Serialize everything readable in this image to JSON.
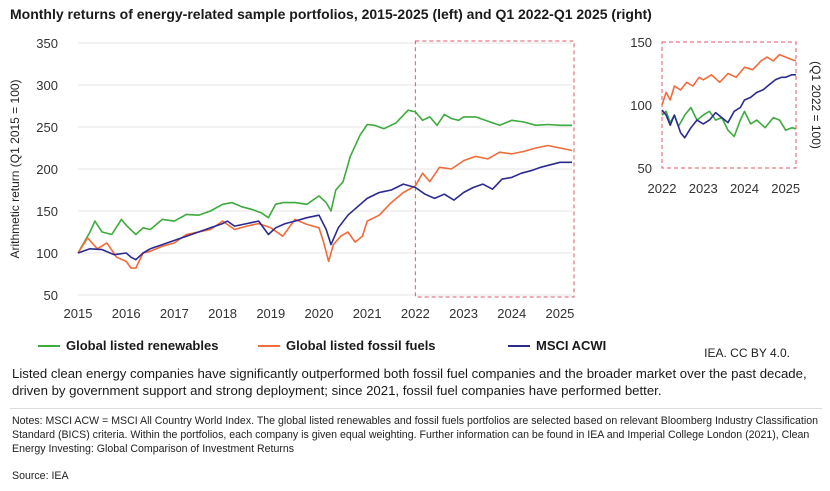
{
  "title": "Monthly returns of energy-related sample portfolios, 2015-2025 (left) and Q1 2022-Q1 2025 (right)",
  "credit": "IEA. CC BY 4.0.",
  "caption": "Listed clean energy companies have significantly outperformed both fossil fuel companies and the broader market over the past decade, driven by government support and strong deployment; since 2021, fossil fuel companies have performed better.",
  "notes": "Notes: MSCI ACW = MSCI All Country World Index. The global listed renewables and fossil fuels portfolios are selected based on relevant Bloomberg Industry Classification Standard (BICS) criteria. Within the portfolios, each company is given equal weighting. Further information can be found in IEA and Imperial College London (2021), Clean Energy Investing: Global Comparison of Investment Returns",
  "source": "Source: IEA",
  "colors": {
    "renewables": "#3dab3d",
    "fossil": "#f26b3a",
    "acwi": "#2b2a8f",
    "highlight": "#e05a6a"
  },
  "chart_data": [
    {
      "type": "line",
      "x_ticks": [
        "2015",
        "2016",
        "2017",
        "2018",
        "2019",
        "2020",
        "2021",
        "2022",
        "2023",
        "2024",
        "2025"
      ],
      "ylabel": "Arithmetic return (Q1 2015 = 100)",
      "ylim": [
        50,
        350
      ],
      "y_ticks": [
        50,
        100,
        150,
        200,
        250,
        300,
        350
      ],
      "xlim": [
        2015,
        2025.25
      ],
      "grid": true,
      "highlight_range": [
        2022,
        2025.25
      ],
      "series": [
        {
          "name": "Global listed renewables",
          "color_key": "renewables",
          "x": [
            2015.0,
            2015.25,
            2015.35,
            2015.5,
            2015.7,
            2015.9,
            2016.0,
            2016.2,
            2016.35,
            2016.5,
            2016.75,
            2017.0,
            2017.25,
            2017.5,
            2017.75,
            2018.0,
            2018.2,
            2018.4,
            2018.6,
            2018.8,
            2018.95,
            2019.1,
            2019.25,
            2019.5,
            2019.75,
            2020.0,
            2020.15,
            2020.25,
            2020.35,
            2020.5,
            2020.65,
            2020.85,
            2021.0,
            2021.15,
            2021.35,
            2021.6,
            2021.85,
            2022.0,
            2022.15,
            2022.3,
            2022.45,
            2022.6,
            2022.75,
            2022.9,
            2023.0,
            2023.25,
            2023.5,
            2023.75,
            2024.0,
            2024.25,
            2024.5,
            2024.75,
            2025.0,
            2025.25
          ],
          "y": [
            100,
            125,
            138,
            125,
            122,
            140,
            133,
            122,
            130,
            128,
            140,
            138,
            146,
            145,
            150,
            158,
            160,
            155,
            152,
            148,
            142,
            158,
            160,
            160,
            158,
            168,
            160,
            150,
            175,
            185,
            215,
            240,
            253,
            252,
            248,
            255,
            270,
            268,
            258,
            262,
            252,
            265,
            260,
            258,
            262,
            262,
            257,
            252,
            258,
            256,
            252,
            253,
            252,
            252
          ]
        },
        {
          "name": "Global listed fossil fuels",
          "color_key": "fossil",
          "x": [
            2015.0,
            2015.2,
            2015.4,
            2015.6,
            2015.8,
            2016.0,
            2016.1,
            2016.2,
            2016.35,
            2016.5,
            2016.75,
            2017.0,
            2017.25,
            2017.5,
            2017.75,
            2018.0,
            2018.25,
            2018.5,
            2018.75,
            2019.0,
            2019.25,
            2019.5,
            2019.75,
            2020.0,
            2020.1,
            2020.2,
            2020.3,
            2020.45,
            2020.6,
            2020.75,
            2020.9,
            2021.0,
            2021.25,
            2021.5,
            2021.75,
            2022.0,
            2022.15,
            2022.3,
            2022.5,
            2022.75,
            2023.0,
            2023.25,
            2023.5,
            2023.75,
            2024.0,
            2024.25,
            2024.5,
            2024.75,
            2025.0,
            2025.25
          ],
          "y": [
            100,
            118,
            105,
            112,
            95,
            90,
            82,
            82,
            100,
            102,
            108,
            112,
            122,
            125,
            128,
            138,
            128,
            132,
            135,
            130,
            120,
            140,
            134,
            130,
            112,
            90,
            110,
            120,
            125,
            113,
            120,
            138,
            145,
            160,
            172,
            180,
            195,
            185,
            202,
            200,
            210,
            215,
            212,
            220,
            218,
            221,
            225,
            228,
            225,
            222
          ]
        },
        {
          "name": "MSCI ACWI",
          "color_key": "acwi",
          "x": [
            2015.0,
            2015.25,
            2015.5,
            2015.75,
            2016.0,
            2016.1,
            2016.2,
            2016.35,
            2016.5,
            2016.75,
            2017.0,
            2017.25,
            2017.5,
            2017.75,
            2018.0,
            2018.1,
            2018.25,
            2018.5,
            2018.75,
            2018.95,
            2019.1,
            2019.3,
            2019.5,
            2019.75,
            2020.0,
            2020.15,
            2020.25,
            2020.4,
            2020.6,
            2020.8,
            2021.0,
            2021.25,
            2021.5,
            2021.75,
            2022.0,
            2022.2,
            2022.4,
            2022.6,
            2022.8,
            2023.0,
            2023.2,
            2023.4,
            2023.6,
            2023.8,
            2024.0,
            2024.2,
            2024.4,
            2024.6,
            2024.8,
            2025.0,
            2025.25
          ],
          "y": [
            100,
            105,
            104,
            98,
            100,
            95,
            92,
            100,
            105,
            110,
            115,
            120,
            125,
            130,
            135,
            138,
            132,
            135,
            138,
            122,
            130,
            135,
            138,
            142,
            145,
            128,
            110,
            130,
            145,
            155,
            165,
            172,
            175,
            182,
            178,
            170,
            165,
            170,
            163,
            172,
            178,
            182,
            176,
            188,
            190,
            195,
            198,
            202,
            205,
            208,
            208
          ]
        }
      ]
    },
    {
      "type": "line",
      "x_ticks": [
        "2022",
        "2023",
        "2024",
        "2025"
      ],
      "ylabel": "(Q1 2022 = 100)",
      "ylim": [
        50,
        150
      ],
      "y_ticks": [
        50,
        100,
        150
      ],
      "xlim": [
        2022,
        2025.25
      ],
      "grid": false,
      "series": [
        {
          "name": "Global listed renewables",
          "color_key": "renewables",
          "x": [
            2022.0,
            2022.1,
            2022.2,
            2022.3,
            2022.4,
            2022.55,
            2022.7,
            2022.85,
            2023.0,
            2023.15,
            2023.3,
            2023.45,
            2023.6,
            2023.75,
            2023.9,
            2024.0,
            2024.15,
            2024.3,
            2024.5,
            2024.7,
            2024.85,
            2025.0,
            2025.15,
            2025.25
          ],
          "y": [
            92,
            95,
            86,
            92,
            83,
            92,
            98,
            88,
            92,
            95,
            88,
            90,
            80,
            75,
            88,
            95,
            85,
            88,
            82,
            90,
            88,
            80,
            82,
            81
          ]
        },
        {
          "name": "Global listed fossil fuels",
          "color_key": "fossil",
          "x": [
            2022.0,
            2022.1,
            2022.2,
            2022.3,
            2022.45,
            2022.6,
            2022.75,
            2022.9,
            2023.0,
            2023.2,
            2023.4,
            2023.6,
            2023.8,
            2024.0,
            2024.2,
            2024.4,
            2024.55,
            2024.7,
            2024.85,
            2025.0,
            2025.15,
            2025.25
          ],
          "y": [
            100,
            110,
            104,
            115,
            112,
            118,
            115,
            122,
            120,
            124,
            118,
            125,
            122,
            130,
            128,
            135,
            138,
            135,
            140,
            138,
            136,
            135
          ]
        },
        {
          "name": "MSCI ACWI",
          "color_key": "acwi",
          "x": [
            2022.0,
            2022.1,
            2022.2,
            2022.3,
            2022.45,
            2022.55,
            2022.7,
            2022.85,
            2023.0,
            2023.15,
            2023.3,
            2023.45,
            2023.6,
            2023.75,
            2023.9,
            2024.0,
            2024.15,
            2024.3,
            2024.45,
            2024.6,
            2024.75,
            2024.9,
            2025.0,
            2025.15,
            2025.25
          ],
          "y": [
            96,
            92,
            84,
            92,
            78,
            74,
            82,
            88,
            85,
            88,
            94,
            90,
            86,
            95,
            98,
            104,
            106,
            110,
            112,
            116,
            120,
            122,
            122,
            124,
            124
          ]
        }
      ]
    }
  ]
}
